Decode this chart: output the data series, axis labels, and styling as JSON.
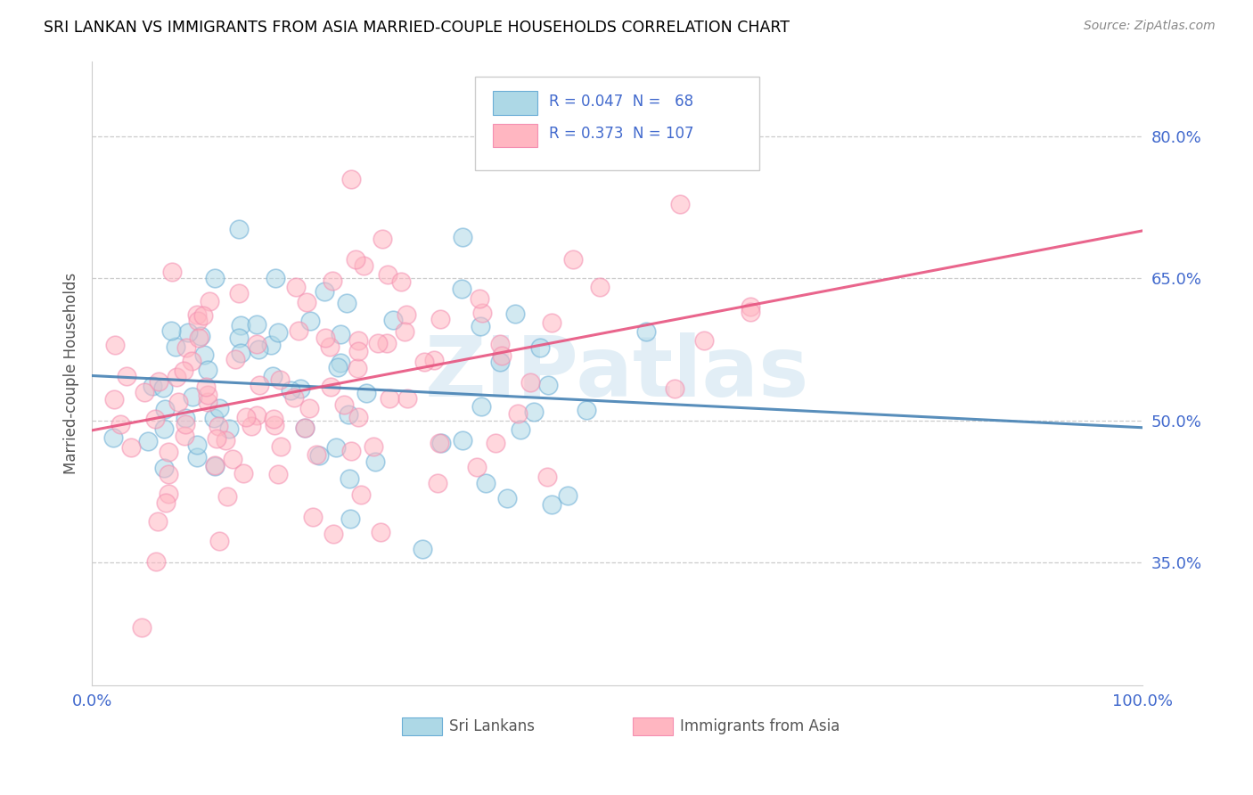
{
  "title": "SRI LANKAN VS IMMIGRANTS FROM ASIA MARRIED-COUPLE HOUSEHOLDS CORRELATION CHART",
  "source": "Source: ZipAtlas.com",
  "ylabel": "Married-couple Households",
  "xlim": [
    0.0,
    1.0
  ],
  "ylim": [
    0.22,
    0.88
  ],
  "yticks": [
    0.35,
    0.5,
    0.65,
    0.8
  ],
  "ytick_labels": [
    "35.0%",
    "50.0%",
    "65.0%",
    "80.0%"
  ],
  "xtick_labels": [
    "0.0%",
    "100.0%"
  ],
  "color_blue": "#ADD8E6",
  "color_pink": "#FFB6C1",
  "color_blue_border": "#6baed6",
  "color_pink_border": "#f48fb1",
  "color_blue_line": "#4682B4",
  "color_pink_line": "#E75480",
  "color_axis_text": "#4169CD",
  "watermark": "ZIPatlas",
  "label_sri": "Sri Lankans",
  "label_asia": "Immigrants from Asia",
  "R_sri": 0.047,
  "N_sri": 68,
  "R_asia": 0.373,
  "N_asia": 107,
  "seed_sri": 15,
  "seed_asia": 25
}
